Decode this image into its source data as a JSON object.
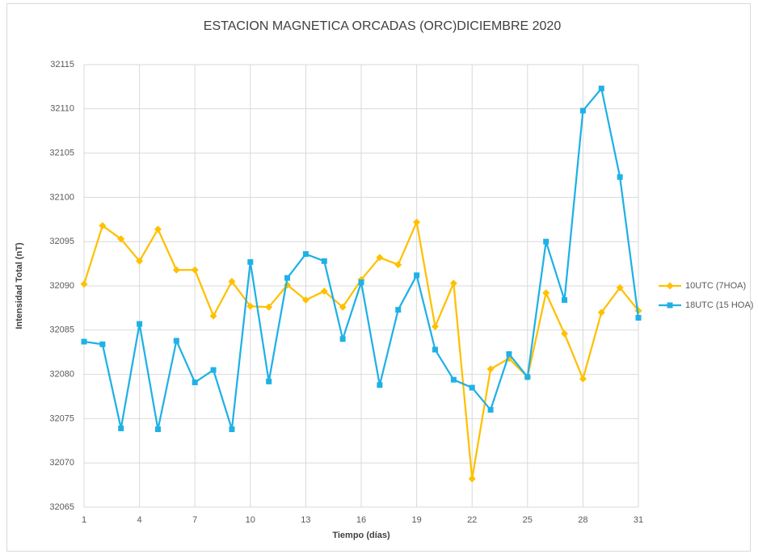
{
  "chart_data": {
    "type": "line",
    "title": "ESTACION MAGNETICA ORCADAS (ORC)DICIEMBRE 2020",
    "xlabel": "Tiempo (días)",
    "ylabel": "Intensidad Total (nT)",
    "x": [
      1,
      2,
      3,
      4,
      5,
      6,
      7,
      8,
      9,
      10,
      11,
      12,
      13,
      14,
      15,
      16,
      17,
      18,
      19,
      20,
      21,
      22,
      23,
      24,
      25,
      26,
      27,
      28,
      29,
      30,
      31
    ],
    "series": [
      {
        "name": "10UTC (7HOA)",
        "color": "#ffc000",
        "marker": "diamond",
        "values": [
          32090.2,
          32096.8,
          32095.3,
          32092.8,
          32096.4,
          32091.8,
          32091.8,
          32086.6,
          32090.5,
          32087.7,
          32087.6,
          32090.1,
          32088.4,
          32089.4,
          32087.6,
          32090.7,
          32093.2,
          32092.4,
          32097.2,
          32085.4,
          32090.3,
          32068.2,
          32080.6,
          32081.8,
          32079.7,
          32089.2,
          32084.6,
          32079.5,
          32087.0,
          32089.8,
          32087.2
        ]
      },
      {
        "name": "18UTC (15 HOA)",
        "color": "#1fb1e6",
        "marker": "square",
        "values": [
          32083.7,
          32083.4,
          32073.9,
          32085.7,
          32073.8,
          32083.8,
          32079.1,
          32080.5,
          32073.8,
          32092.7,
          32079.2,
          32090.9,
          32093.6,
          32092.8,
          32084.0,
          32090.4,
          32078.8,
          32087.3,
          32091.2,
          32082.8,
          32079.4,
          32078.5,
          32076.0,
          32082.3,
          32079.7,
          32095.0,
          32088.4,
          32109.8,
          32112.3,
          32102.3,
          32086.4
        ]
      }
    ],
    "xlim": [
      1,
      31
    ],
    "xticks": [
      1,
      4,
      7,
      10,
      13,
      16,
      19,
      22,
      25,
      28,
      31
    ],
    "ylim": [
      32065,
      32115
    ],
    "yticks": [
      32065,
      32070,
      32075,
      32080,
      32085,
      32090,
      32095,
      32100,
      32105,
      32110,
      32115
    ],
    "grid": true,
    "legend": "right"
  }
}
